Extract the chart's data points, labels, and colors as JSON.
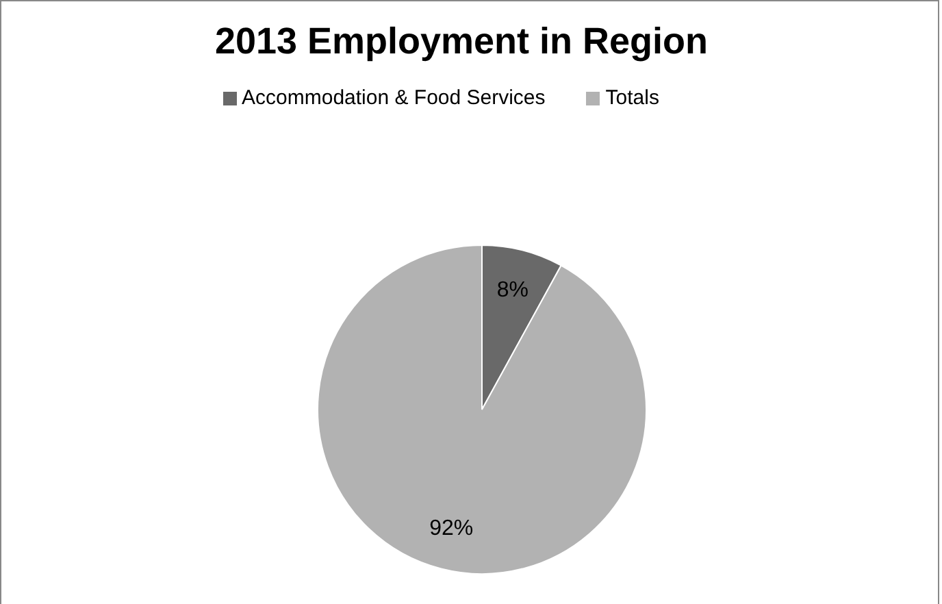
{
  "chart_data": {
    "type": "pie",
    "title": "2013 Employment in Region",
    "categories": [
      "Accommodation & Food Services",
      "Totals"
    ],
    "values": [
      8,
      92
    ],
    "colors": [
      "#696969",
      "#b2b2b2"
    ],
    "value_labels": [
      "8%",
      "92%"
    ],
    "legend": "top"
  }
}
